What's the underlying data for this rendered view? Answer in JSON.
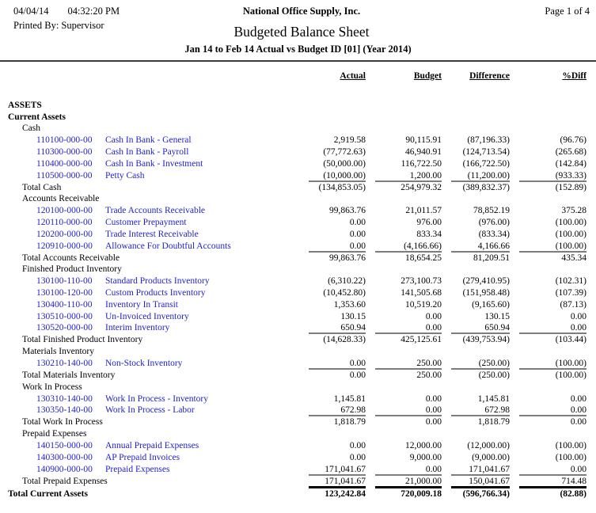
{
  "header": {
    "date": "04/04/14",
    "time": "04:32:20 PM",
    "printed_by": "Printed By: Supervisor",
    "company": "National Office Supply, Inc.",
    "title": "Budgeted Balance Sheet",
    "subtitle": "Jan 14 to Feb 14 Actual vs Budget ID [01] (Year 2014)",
    "page": "Page 1 of 4"
  },
  "columns": [
    "Actual",
    "Budget",
    "Difference",
    "%Diff"
  ],
  "colors": {
    "link_blue": "#2222cc",
    "total_line_gray": "#7d7d7d",
    "grand_total_line_black": "#000000"
  },
  "report": {
    "rows": [
      {
        "type": "heading",
        "level": 0,
        "label": "ASSETS"
      },
      {
        "type": "heading",
        "level": 0,
        "label": "Current Assets"
      },
      {
        "type": "heading",
        "level": 1,
        "label": "Cash"
      },
      {
        "type": "account",
        "account": "110100-000-00",
        "label": "Cash In Bank - General",
        "actual": "2,919.58",
        "budget": "90,115.91",
        "difference": "(87,196.33)",
        "pctdiff": "(96.76)"
      },
      {
        "type": "account",
        "account": "110300-000-00",
        "label": "Cash In Bank - Payroll",
        "actual": "(77,772.63)",
        "budget": "46,940.91",
        "difference": "(124,713.54)",
        "pctdiff": "(265.68)"
      },
      {
        "type": "account",
        "account": "110400-000-00",
        "label": "Cash In Bank - Investment",
        "actual": "(50,000.00)",
        "budget": "116,722.50",
        "difference": "(166,722.50)",
        "pctdiff": "(142.84)"
      },
      {
        "type": "account",
        "account": "110500-000-00",
        "label": "Petty Cash",
        "actual": "(10,000.00)",
        "budget": "1,200.00",
        "difference": "(11,200.00)",
        "pctdiff": "(933.33)"
      },
      {
        "type": "total",
        "label": "Total Cash",
        "actual": "(134,853.05)",
        "budget": "254,979.32",
        "difference": "(389,832.37)",
        "pctdiff": "(152.89)"
      },
      {
        "type": "heading",
        "level": 1,
        "label": "Accounts Receivable"
      },
      {
        "type": "account",
        "account": "120100-000-00",
        "label": "Trade Accounts Receivable",
        "actual": "99,863.76",
        "budget": "21,011.57",
        "difference": "78,852.19",
        "pctdiff": "375.28"
      },
      {
        "type": "account",
        "account": "120110-000-00",
        "label": "Customer Prepayment",
        "actual": "0.00",
        "budget": "976.00",
        "difference": "(976.00)",
        "pctdiff": "(100.00)"
      },
      {
        "type": "account",
        "account": "120200-000-00",
        "label": "Trade Interest Receivable",
        "actual": "0.00",
        "budget": "833.34",
        "difference": "(833.34)",
        "pctdiff": "(100.00)"
      },
      {
        "type": "account",
        "account": "120910-000-00",
        "label": "Allowance For Doubtful Accounts",
        "actual": "0.00",
        "budget": "(4,166.66)",
        "difference": "4,166.66",
        "pctdiff": "(100.00)"
      },
      {
        "type": "total",
        "label": "Total Accounts Receivable",
        "actual": "99,863.76",
        "budget": "18,654.25",
        "difference": "81,209.51",
        "pctdiff": "435.34"
      },
      {
        "type": "heading",
        "level": 1,
        "label": "Finished Product Inventory"
      },
      {
        "type": "account",
        "account": "130100-110-00",
        "label": "Standard Products Inventory",
        "actual": "(6,310.22)",
        "budget": "273,100.73",
        "difference": "(279,410.95)",
        "pctdiff": "(102.31)"
      },
      {
        "type": "account",
        "account": "130100-120-00",
        "label": "Custom Products Inventory",
        "actual": "(10,452.80)",
        "budget": "141,505.68",
        "difference": "(151,958.48)",
        "pctdiff": "(107.39)"
      },
      {
        "type": "account",
        "account": "130400-110-00",
        "label": "Inventory In Transit",
        "actual": "1,353.60",
        "budget": "10,519.20",
        "difference": "(9,165.60)",
        "pctdiff": "(87.13)"
      },
      {
        "type": "account",
        "account": "130510-000-00",
        "label": "Un-Invoiced Inventory",
        "actual": "130.15",
        "budget": "0.00",
        "difference": "130.15",
        "pctdiff": "0.00"
      },
      {
        "type": "account",
        "account": "130520-000-00",
        "label": "Interim Inventory",
        "actual": "650.94",
        "budget": "0.00",
        "difference": "650.94",
        "pctdiff": "0.00"
      },
      {
        "type": "total",
        "label": "Total Finished Product Inventory",
        "actual": "(14,628.33)",
        "budget": "425,125.61",
        "difference": "(439,753.94)",
        "pctdiff": "(103.44)"
      },
      {
        "type": "heading",
        "level": 1,
        "label": "Materials Inventory"
      },
      {
        "type": "account",
        "account": "130210-140-00",
        "label": "Non-Stock Inventory",
        "actual": "0.00",
        "budget": "250.00",
        "difference": "(250.00)",
        "pctdiff": "(100.00)"
      },
      {
        "type": "total",
        "label": "Total Materials Inventory",
        "actual": "0.00",
        "budget": "250.00",
        "difference": "(250.00)",
        "pctdiff": "(100.00)"
      },
      {
        "type": "heading",
        "level": 1,
        "label": "Work In Process"
      },
      {
        "type": "account",
        "account": "130310-140-00",
        "label": "Work In Process - Inventory",
        "actual": "1,145.81",
        "budget": "0.00",
        "difference": "1,145.81",
        "pctdiff": "0.00"
      },
      {
        "type": "account",
        "account": "130350-140-00",
        "label": "Work In Process - Labor",
        "actual": "672.98",
        "budget": "0.00",
        "difference": "672.98",
        "pctdiff": "0.00"
      },
      {
        "type": "total",
        "label": "Total Work In Process",
        "actual": "1,818.79",
        "budget": "0.00",
        "difference": "1,818.79",
        "pctdiff": "0.00"
      },
      {
        "type": "heading",
        "level": 1,
        "label": "Prepaid Expenses"
      },
      {
        "type": "account",
        "account": "140150-000-00",
        "label": "Annual Prepaid Expenses",
        "actual": "0.00",
        "budget": "12,000.00",
        "difference": "(12,000.00)",
        "pctdiff": "(100.00)"
      },
      {
        "type": "account",
        "account": "140300-000-00",
        "label": "AP Prepaid Invoices",
        "actual": "0.00",
        "budget": "9,000.00",
        "difference": "(9,000.00)",
        "pctdiff": "(100.00)"
      },
      {
        "type": "account",
        "account": "140900-000-00",
        "label": "Prepaid Expenses",
        "actual": "171,041.67",
        "budget": "0.00",
        "difference": "171,041.67",
        "pctdiff": "0.00"
      },
      {
        "type": "total",
        "label": "Total Prepaid Expenses",
        "actual": "171,041.67",
        "budget": "21,000.00",
        "difference": "150,041.67",
        "pctdiff": "714.48"
      },
      {
        "type": "grandtotal",
        "label": "Total Current Assets",
        "actual": "123,242.84",
        "budget": "720,009.18",
        "difference": "(596,766.34)",
        "pctdiff": "(82.88)"
      }
    ]
  }
}
